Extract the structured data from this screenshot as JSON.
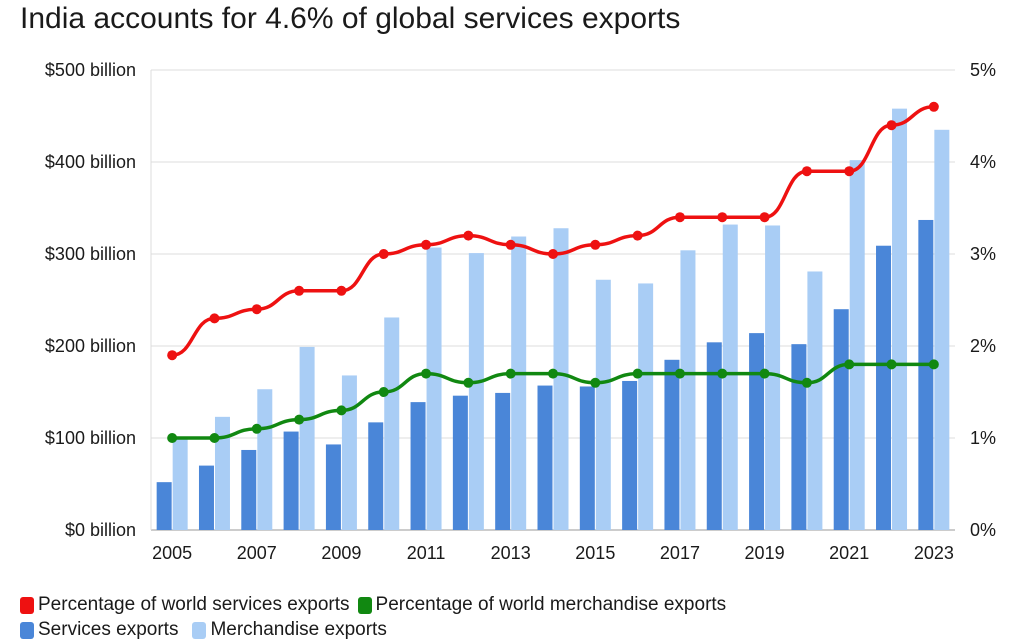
{
  "chart_data": {
    "type": "bar",
    "title": "India accounts for 4.6% of global services exports",
    "x": [
      2005,
      2006,
      2007,
      2008,
      2009,
      2010,
      2011,
      2012,
      2013,
      2014,
      2015,
      2016,
      2017,
      2018,
      2019,
      2020,
      2021,
      2022,
      2023
    ],
    "x_tick_labels": [
      "2005",
      "2007",
      "2009",
      "2011",
      "2013",
      "2015",
      "2017",
      "2019",
      "2021",
      "2023"
    ],
    "y_left": {
      "ylim": [
        0,
        500
      ],
      "tick_labels": [
        "$0 billion",
        "$100 billion",
        "$200 billion",
        "$300 billion",
        "$400 billion",
        "$500 billion"
      ]
    },
    "y_right": {
      "ylim": [
        0,
        5
      ],
      "tick_labels": [
        "0%",
        "1%",
        "2%",
        "3%",
        "4%",
        "5%"
      ]
    },
    "grid": true,
    "legend_position": "bottom-left",
    "series": [
      {
        "name": "Services exports",
        "type": "bar",
        "axis": "left",
        "color": "#4a86d8",
        "values": [
          52,
          70,
          87,
          107,
          93,
          117,
          139,
          146,
          149,
          157,
          156,
          162,
          185,
          204,
          214,
          202,
          240,
          309,
          337
        ]
      },
      {
        "name": "Merchandise exports",
        "type": "bar",
        "axis": "left",
        "color": "#a9cdf5",
        "values": [
          100,
          123,
          153,
          199,
          168,
          231,
          307,
          301,
          319,
          328,
          272,
          268,
          304,
          332,
          331,
          281,
          402,
          458,
          435
        ]
      },
      {
        "name": "Percentage of world services exports",
        "type": "line",
        "axis": "right",
        "color": "#ee1111",
        "values": [
          1.9,
          2.3,
          2.4,
          2.6,
          2.6,
          3.0,
          3.1,
          3.2,
          3.1,
          3.0,
          3.1,
          3.2,
          3.4,
          3.4,
          3.4,
          3.9,
          3.9,
          4.4,
          4.6
        ]
      },
      {
        "name": "Percentage of world merchandise exports",
        "type": "line",
        "axis": "right",
        "color": "#118811",
        "values": [
          1.0,
          1.0,
          1.1,
          1.2,
          1.3,
          1.5,
          1.7,
          1.6,
          1.7,
          1.7,
          1.6,
          1.7,
          1.7,
          1.7,
          1.7,
          1.6,
          1.8,
          1.8,
          1.8
        ]
      }
    ]
  }
}
